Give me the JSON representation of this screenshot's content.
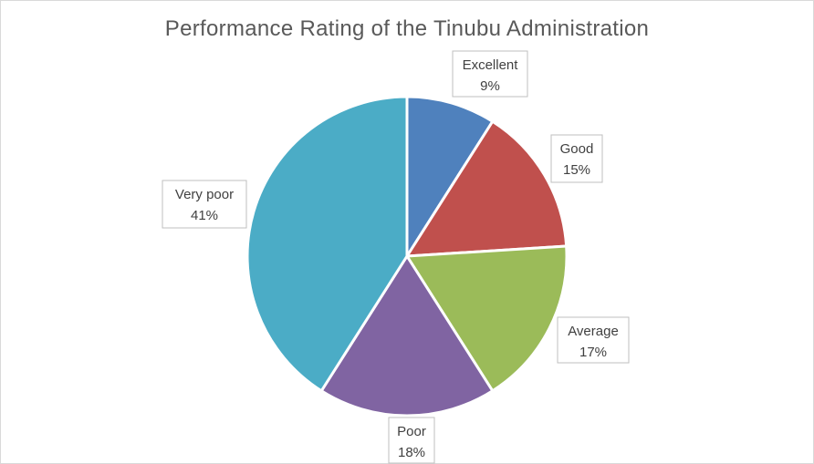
{
  "chart_data": {
    "type": "pie",
    "title": "Performance Rating of the Tinubu Administration",
    "categories": [
      "Excellent",
      "Good",
      "Average",
      "Poor",
      "Very poor"
    ],
    "values": [
      9,
      15,
      17,
      18,
      41
    ],
    "value_labels": [
      "9%",
      "15%",
      "17%",
      "18%",
      "41%"
    ],
    "colors": [
      "#4f81bd",
      "#c0504d",
      "#9bbb59",
      "#8064a2",
      "#4bacc6"
    ],
    "legend": "none",
    "data_label_style": "callout"
  }
}
